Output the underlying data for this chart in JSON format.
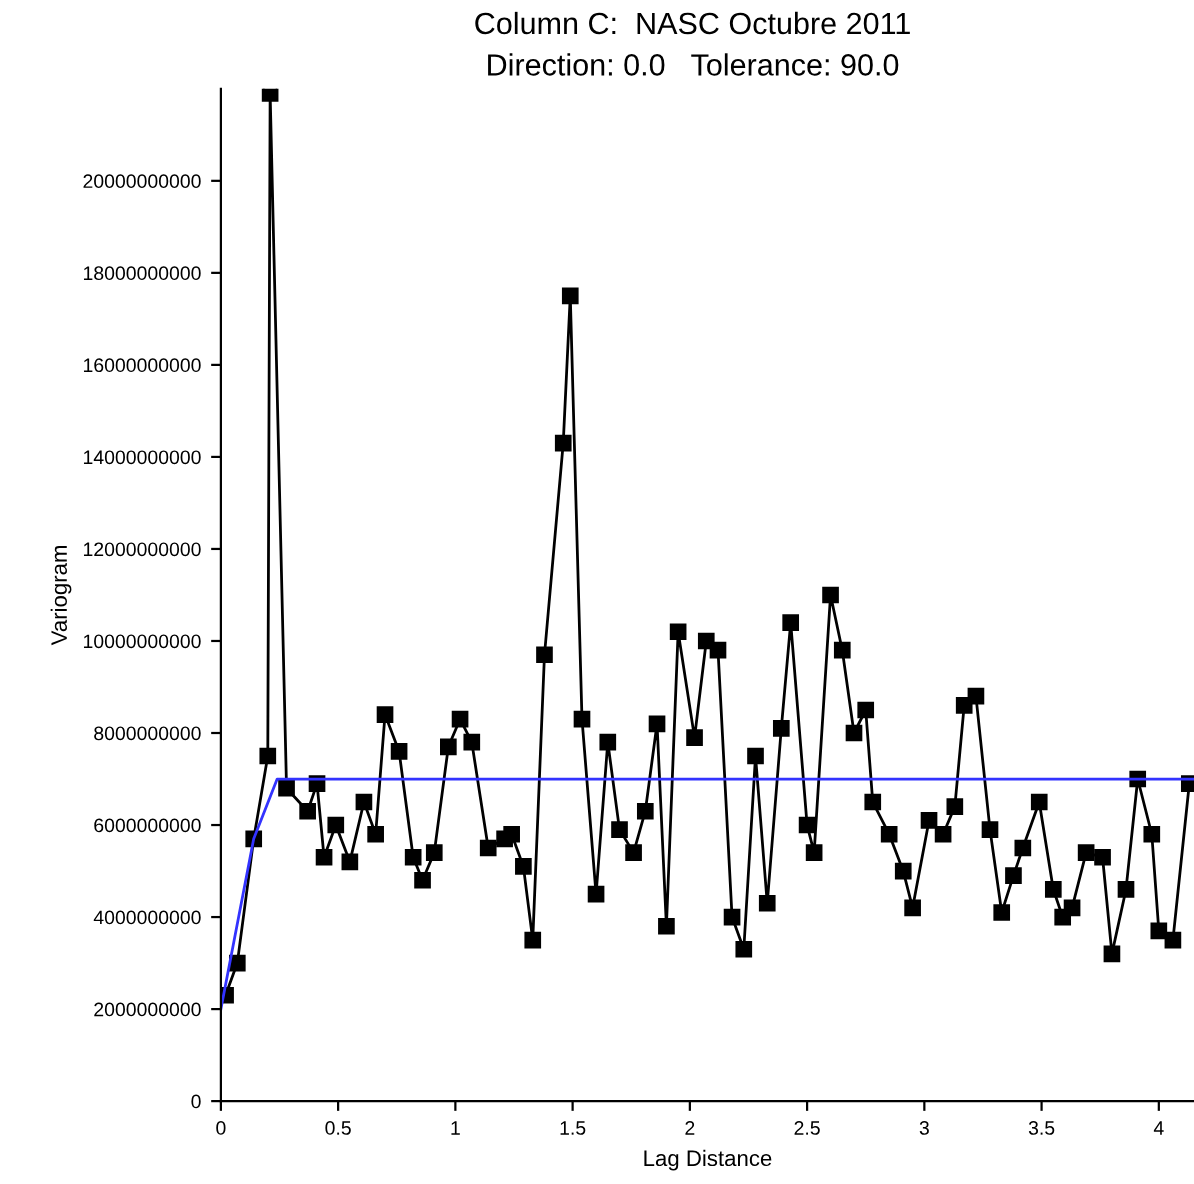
{
  "chart_data": {
    "type": "line",
    "title": "Column C:  NASC Octubre 2011",
    "subtitle": "Direction: 0.0   Tolerance: 90.0",
    "xlabel": "Lag Distance",
    "ylabel": "Variogram",
    "xlim": [
      0,
      4.15
    ],
    "xticks": [
      0,
      0.5,
      1,
      1.5,
      2,
      2.5,
      3,
      3.5,
      4
    ],
    "ylim": [
      0,
      22000000000
    ],
    "yticks": [
      0,
      2000000000,
      4000000000,
      6000000000,
      8000000000,
      10000000000,
      12000000000,
      14000000000,
      16000000000,
      18000000000,
      20000000000
    ],
    "grid": false,
    "legend": false,
    "series": [
      {
        "color": "#000000",
        "marker": "square",
        "line_style": "solid",
        "x": [
          0.02,
          0.07,
          0.14,
          0.2,
          0.21,
          0.28,
          0.37,
          0.41,
          0.44,
          0.49,
          0.55,
          0.61,
          0.66,
          0.7,
          0.76,
          0.82,
          0.86,
          0.91,
          0.97,
          1.02,
          1.07,
          1.14,
          1.21,
          1.24,
          1.29,
          1.33,
          1.38,
          1.46,
          1.49,
          1.54,
          1.6,
          1.65,
          1.7,
          1.76,
          1.81,
          1.86,
          1.9,
          1.95,
          2.02,
          2.07,
          2.12,
          2.18,
          2.23,
          2.28,
          2.33,
          2.39,
          2.43,
          2.5,
          2.53,
          2.6,
          2.65,
          2.7,
          2.75,
          2.78,
          2.85,
          2.91,
          2.95,
          3.02,
          3.08,
          3.13,
          3.17,
          3.22,
          3.28,
          3.33,
          3.38,
          3.42,
          3.49,
          3.55,
          3.59,
          3.63,
          3.69,
          3.76,
          3.8,
          3.86,
          3.91,
          3.97,
          4.0,
          4.06,
          4.13
        ],
        "values": [
          2300000000,
          3000000000,
          5700000000,
          7500000000,
          21900000000,
          6800000000,
          6300000000,
          6900000000,
          5300000000,
          6000000000,
          5200000000,
          6500000000,
          5800000000,
          8400000000,
          7600000000,
          5300000000,
          4800000000,
          5400000000,
          7700000000,
          8300000000,
          7800000000,
          5500000000,
          5700000000,
          5800000000,
          5100000000,
          3500000000,
          9700000000,
          14300000000,
          17500000000,
          8300000000,
          4500000000,
          7800000000,
          5900000000,
          5400000000,
          6300000000,
          8200000000,
          3800000000,
          10200000000,
          7900000000,
          10000000000,
          9800000000,
          4000000000,
          3300000000,
          7500000000,
          4300000000,
          8100000000,
          10400000000,
          6000000000,
          5400000000,
          11000000000,
          9800000000,
          8000000000,
          8500000000,
          6500000000,
          5800000000,
          5000000000,
          4200000000,
          6100000000,
          5800000000,
          6400000000,
          8600000000,
          8800000000,
          5900000000,
          4100000000,
          4900000000,
          5500000000,
          6500000000,
          4600000000,
          4000000000,
          4200000000,
          5400000000,
          5300000000,
          3200000000,
          4600000000,
          7000000000,
          5800000000,
          3700000000,
          3500000000,
          6900000000
        ]
      },
      {
        "color": "#3333ff",
        "marker": "none",
        "line_style": "solid",
        "x": [
          0,
          0.14,
          0.24,
          4.15
        ],
        "values": [
          2000000000,
          5700000000,
          7000000000,
          7000000000
        ]
      }
    ]
  }
}
